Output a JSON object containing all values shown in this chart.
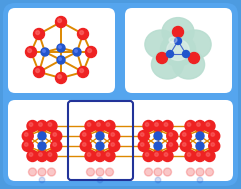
{
  "bg_color": "#4d9be0",
  "panel_bg": "#5aa3e8",
  "red_color": "#ee2222",
  "blue_color": "#2255cc",
  "orange_color": "#dd8800",
  "green_blob": "#b8ddd0",
  "green_blob2": "#c8e8dc",
  "highlight_edge": "#223399",
  "white": "#ffffff"
}
